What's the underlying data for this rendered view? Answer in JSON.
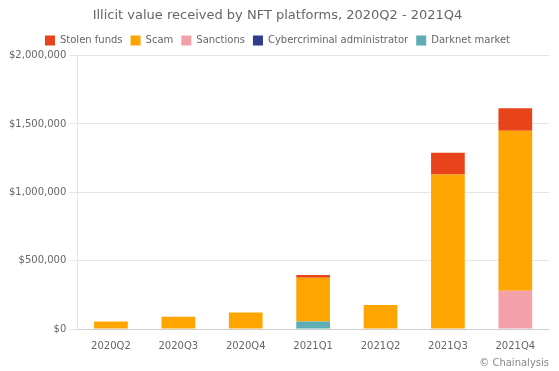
{
  "chart_data": {
    "type": "bar",
    "title": "Illicit value received by NFT platforms, 2020Q2 - 2021Q4",
    "categories": [
      "2020Q2",
      "2020Q3",
      "2020Q4",
      "2021Q1",
      "2021Q2",
      "2021Q3",
      "2021Q4"
    ],
    "series": [
      {
        "name": "Darknet market",
        "color": "#5eadb5",
        "values": [
          0,
          0,
          0,
          55000,
          0,
          0,
          0
        ]
      },
      {
        "name": "Cybercriminal administrator",
        "color": "#2e3c8c",
        "values": [
          0,
          0,
          0,
          0,
          0,
          0,
          0
        ]
      },
      {
        "name": "Sanctions",
        "color": "#f4a0a8",
        "values": [
          0,
          0,
          0,
          0,
          0,
          0,
          280000
        ]
      },
      {
        "name": "Scam",
        "color": "#ffa500",
        "values": [
          55000,
          90000,
          120000,
          320000,
          175000,
          1130000,
          1170000
        ]
      },
      {
        "name": "Stolen funds",
        "color": "#e8431a",
        "values": [
          0,
          0,
          0,
          20000,
          0,
          160000,
          165000
        ]
      }
    ],
    "stacked": true,
    "ylim": [
      0,
      2000000
    ],
    "yticks": [
      {
        "value": 0,
        "label": "$0"
      },
      {
        "value": 500000,
        "label": "$500,000"
      },
      {
        "value": 1000000,
        "label": "$1,000,000"
      },
      {
        "value": 1500000,
        "label": "$1,500,000"
      },
      {
        "value": 2000000,
        "label": "$2,000,000"
      }
    ],
    "grid": true,
    "legend": "top",
    "annotations": [
      "© Chainalysis"
    ]
  }
}
